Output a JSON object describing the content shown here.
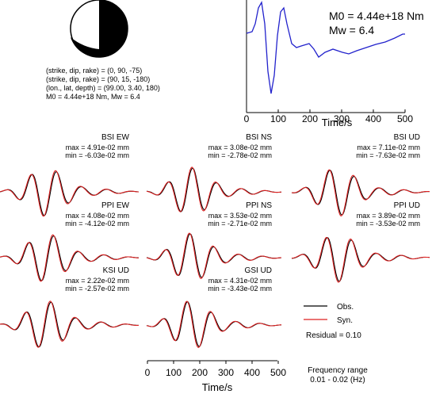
{
  "beachball": {
    "colors": {
      "fill": "#000000",
      "background": "#ffffff"
    }
  },
  "params": [
    "(strike, dip, rake) = (0, 90, -75)",
    "(strike, dip, rake) = (90, 15, -180)",
    "(lon., lat, depth) = (99.00, 3.40, 180)",
    "M0 = 4.44e+18 Nm, Mw = 6.4"
  ],
  "stf": {
    "m0_text": "M0 = 4.44e+18 Nm",
    "mw_text": "Mw = 6.4",
    "xlabel": "Time/s",
    "xticks": [
      "0",
      "100",
      "200",
      "300",
      "400",
      "500"
    ],
    "color": "#2222cc"
  },
  "stations": [
    {
      "name": "BSI EW",
      "max": "max = 4.91e-02 mm",
      "min": "min = -6.03e-02 mm"
    },
    {
      "name": "BSI NS",
      "max": "max = 3.08e-02 mm",
      "min": "min = -2.78e-02 mm"
    },
    {
      "name": "BSI UD",
      "max": "max = 7.11e-02 mm",
      "min": "min = -7.63e-02 mm"
    },
    {
      "name": "PPI EW",
      "max": "max = 4.08e-02 mm",
      "min": "min = -4.12e-02 mm"
    },
    {
      "name": "PPI NS",
      "max": "max = 3.53e-02 mm",
      "min": "min = -2.71e-02 mm"
    },
    {
      "name": "PPI UD",
      "max": "max = 3.89e-02 mm",
      "min": "min = -3.53e-02 mm"
    },
    {
      "name": "KSI UD",
      "max": "max = 2.22e-02 mm",
      "min": "min = -2.57e-02 mm"
    },
    {
      "name": "GSI UD",
      "max": "max = 4.31e-02 mm",
      "min": "min = -3.43e-02 mm"
    }
  ],
  "waveform_axis": {
    "xlabel": "Time/s",
    "xticks": [
      "0",
      "100",
      "200",
      "300",
      "400",
      "500"
    ]
  },
  "legend": {
    "obs_label": "Obs.",
    "syn_label": "Syn.",
    "obs_color": "#000000",
    "syn_color": "#dd2222",
    "residual": "Residual = 0.10"
  },
  "frequency": {
    "title": "Frequency range",
    "value": "0.01 - 0.02 (Hz)"
  }
}
